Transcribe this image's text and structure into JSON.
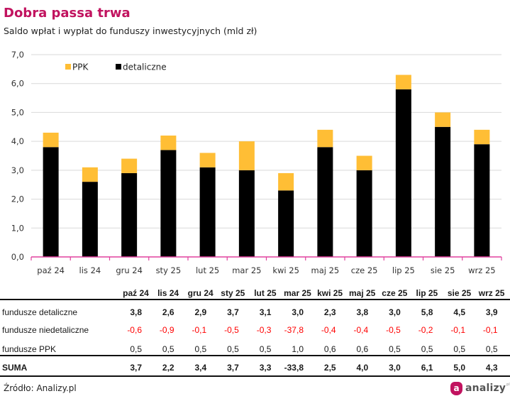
{
  "header": {
    "title": "Dobra passa trwa",
    "subtitle": "Saldo wpłat i wypłat do funduszy inwestycyjnych (mld zł)"
  },
  "colors": {
    "accent": "#C1135F",
    "ppk": "#FFBE35",
    "detaliczne": "#000000",
    "axis": "#E0409E",
    "grid": "#D9D9D9",
    "negative": "#FF0000"
  },
  "chart_data": {
    "type": "bar",
    "stacked": true,
    "title": "Dobra passa trwa",
    "subtitle": "Saldo wpłat i wypłat do funduszy inwestycyjnych (mld zł)",
    "xlabel": "",
    "ylabel": "",
    "categories": [
      "paź 24",
      "lis 24",
      "gru 24",
      "sty 25",
      "lut 25",
      "mar 25",
      "kwi 25",
      "maj 25",
      "cze 25",
      "lip 25",
      "sie 25",
      "wrz 25"
    ],
    "series": [
      {
        "name": "detaliczne",
        "color": "#000000",
        "values": [
          3.8,
          2.6,
          2.9,
          3.7,
          3.1,
          3.0,
          2.3,
          3.8,
          3.0,
          5.8,
          4.5,
          3.9
        ]
      },
      {
        "name": "PPK",
        "color": "#FFBE35",
        "values": [
          0.5,
          0.5,
          0.5,
          0.5,
          0.5,
          1.0,
          0.6,
          0.6,
          0.5,
          0.5,
          0.5,
          0.5
        ]
      }
    ],
    "ylim": [
      0,
      7
    ],
    "yticks": [
      "0,0",
      "1,0",
      "2,0",
      "3,0",
      "4,0",
      "5,0",
      "6,0",
      "7,0"
    ],
    "grid": true,
    "legend": {
      "placement": "top-left",
      "entries": [
        "PPK",
        "detaliczne"
      ]
    }
  },
  "table": {
    "columns": [
      "paź 24",
      "lis 24",
      "gru 24",
      "sty 25",
      "lut 25",
      "mar 25",
      "kwi 25",
      "maj 25",
      "cze 25",
      "lip 25",
      "sie 25",
      "wrz 25"
    ],
    "rows": [
      {
        "label": "fundusze detaliczne",
        "style": "bold",
        "values": [
          "3,8",
          "2,6",
          "2,9",
          "3,7",
          "3,1",
          "3,0",
          "2,3",
          "3,8",
          "3,0",
          "5,8",
          "4,5",
          "3,9"
        ]
      },
      {
        "label": "fundusze niedetaliczne",
        "style": "negative",
        "values": [
          "-0,6",
          "-0,9",
          "-0,1",
          "-0,5",
          "-0,3",
          "-37,8",
          "-0,4",
          "-0,4",
          "-0,5",
          "-0,2",
          "-0,1",
          "-0,1"
        ]
      },
      {
        "label": "fundusze PPK",
        "style": "normal",
        "values": [
          "0,5",
          "0,5",
          "0,5",
          "0,5",
          "0,5",
          "1,0",
          "0,6",
          "0,6",
          "0,5",
          "0,5",
          "0,5",
          "0,5"
        ]
      },
      {
        "label": "SUMA",
        "style": "total",
        "values": [
          "3,7",
          "2,2",
          "3,4",
          "3,7",
          "3,3",
          "-33,8",
          "2,5",
          "4,0",
          "3,0",
          "6,1",
          "5,0",
          "4,3"
        ]
      }
    ]
  },
  "footer": {
    "source": "Źródło: Analizy.pl",
    "logo_letter": "a",
    "logo_text": "analizy",
    "logo_sup": "pl"
  }
}
